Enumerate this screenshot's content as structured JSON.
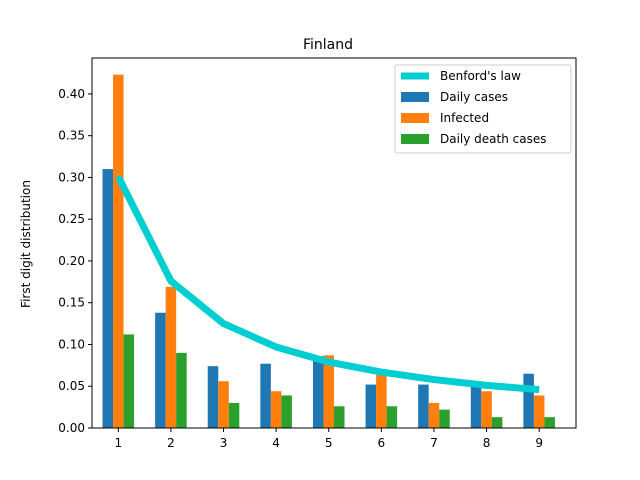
{
  "chart_data": {
    "type": "bar",
    "title": "Finland",
    "xlabel": "",
    "ylabel": "First digit distribution",
    "categories": [
      "1",
      "2",
      "3",
      "4",
      "5",
      "6",
      "7",
      "8",
      "9"
    ],
    "x": [
      1,
      2,
      3,
      4,
      5,
      6,
      7,
      8,
      9
    ],
    "xlim": [
      0.5,
      9.7
    ],
    "ylim": [
      0,
      0.443
    ],
    "yticks": [
      0.0,
      0.05,
      0.1,
      0.15,
      0.2,
      0.25,
      0.3,
      0.35,
      0.4
    ],
    "ytick_labels": [
      "0.00",
      "0.05",
      "0.10",
      "0.15",
      "0.20",
      "0.25",
      "0.30",
      "0.35",
      "0.40"
    ],
    "grid": false,
    "legend_position": "top-right",
    "series": [
      {
        "name": "Benford's law",
        "kind": "line",
        "color": "#00CED1",
        "values": [
          0.301,
          0.176,
          0.125,
          0.097,
          0.079,
          0.067,
          0.058,
          0.051,
          0.046
        ]
      },
      {
        "name": "Daily cases",
        "kind": "bar",
        "color": "#1f77b4",
        "values": [
          0.31,
          0.138,
          0.074,
          0.077,
          0.086,
          0.052,
          0.052,
          0.052,
          0.065
        ]
      },
      {
        "name": "Infected",
        "kind": "bar",
        "color": "#ff7f0e",
        "values": [
          0.423,
          0.169,
          0.056,
          0.044,
          0.087,
          0.065,
          0.03,
          0.044,
          0.039
        ]
      },
      {
        "name": "Daily death cases",
        "kind": "bar",
        "color": "#2ca02c",
        "values": [
          0.112,
          0.09,
          0.03,
          0.039,
          0.026,
          0.026,
          0.022,
          0.013,
          0.013
        ]
      }
    ]
  }
}
